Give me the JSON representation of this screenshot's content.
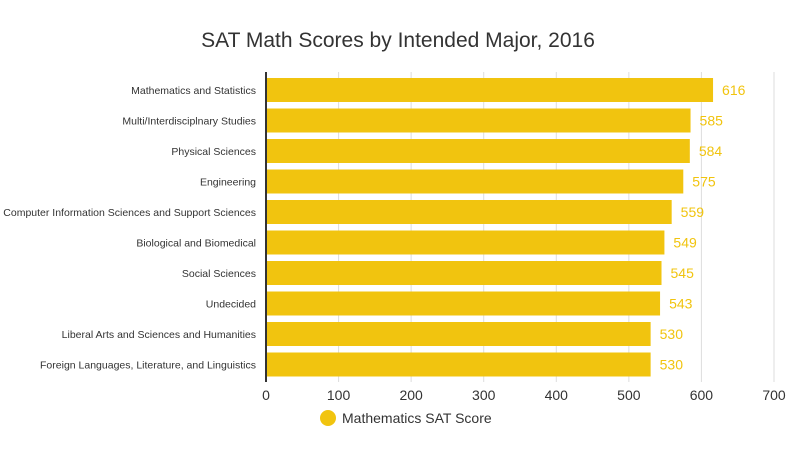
{
  "chart_data": {
    "type": "bar",
    "orientation": "horizontal",
    "title": "SAT Math Scores by Intended Major, 2016",
    "xlabel": "",
    "ylabel": "",
    "xlim": [
      0,
      700
    ],
    "x_ticks": [
      0,
      100,
      200,
      300,
      400,
      500,
      600,
      700
    ],
    "grid": true,
    "legend_position": "bottom",
    "categories": [
      "Mathematics and Statistics",
      "Multi/Interdisciplnary Studies",
      "Physical Sciences",
      "Engineering",
      "Computer Information Sciences and Support Sciences",
      "Biological and Biomedical",
      "Social Sciences",
      "Undecided",
      "Liberal Arts and Sciences and Humanities",
      "Foreign Languages, Literature, and Linguistics"
    ],
    "series": [
      {
        "name": "Mathematics SAT Score",
        "color": "#f1c40f",
        "values": [
          616,
          585,
          584,
          575,
          559,
          549,
          545,
          543,
          530,
          530
        ]
      }
    ],
    "colors": {
      "bar": "#f1c40f",
      "value_label": "#f1c40f",
      "title": "#333333",
      "category_label": "#333333",
      "tick_label": "#333333",
      "gridline": "#dddddd",
      "axis_line": "#333333"
    }
  }
}
